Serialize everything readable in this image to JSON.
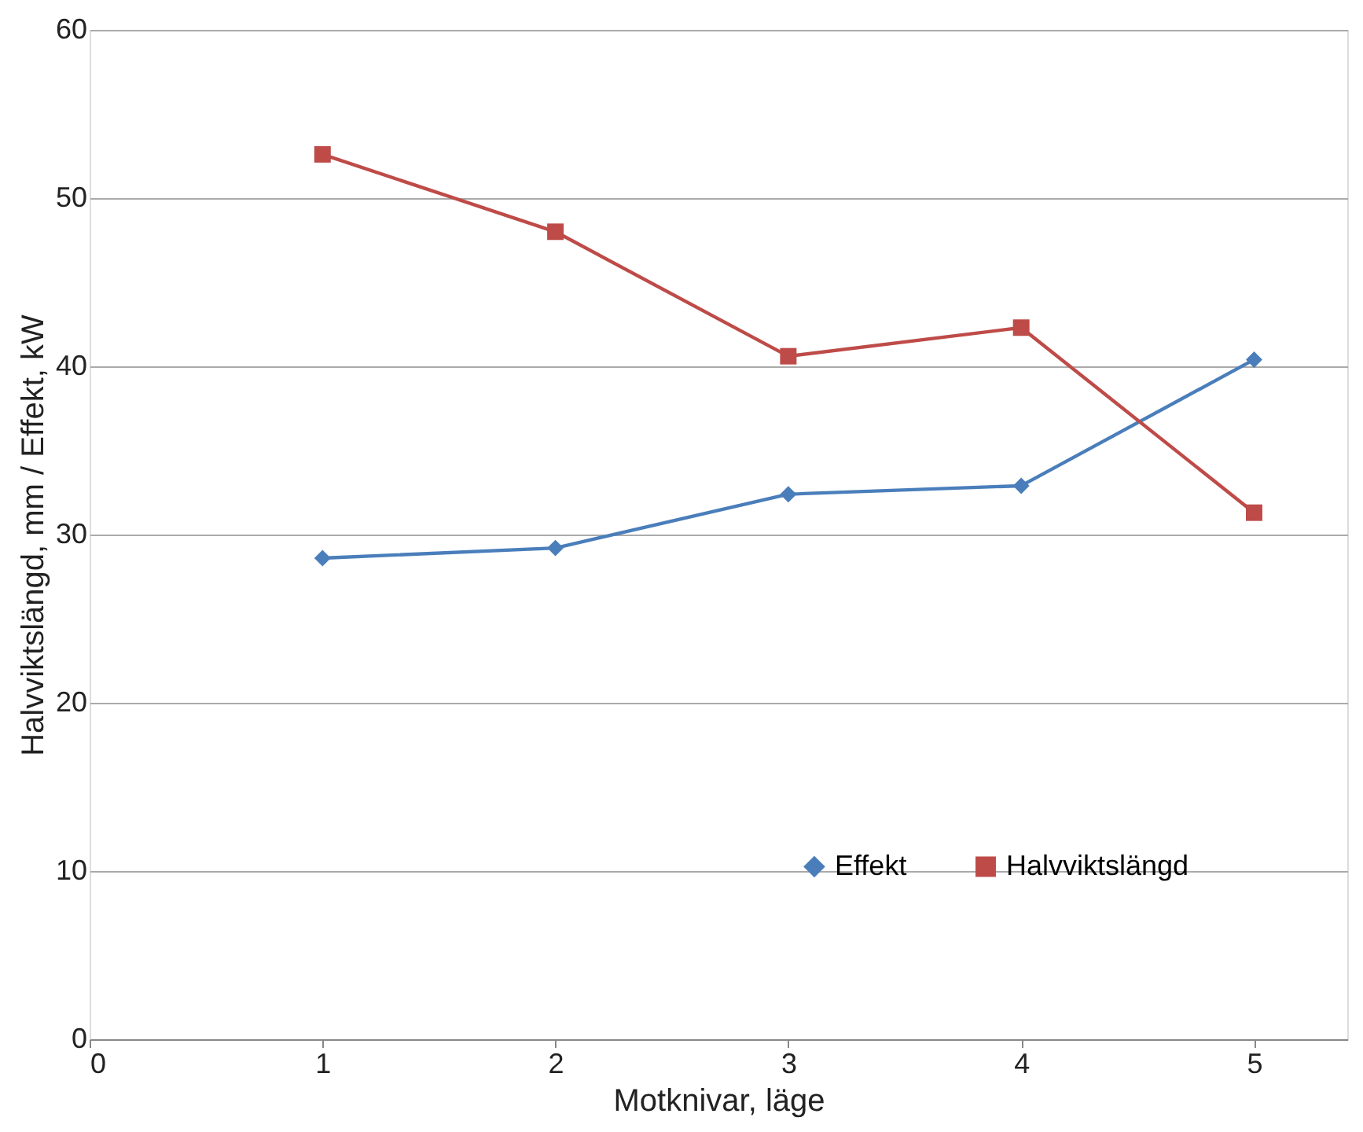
{
  "chart_data": {
    "type": "line",
    "xlabel": "Motknivar, läge",
    "ylabel": "Halvviktslängd, mm / Effekt, kW",
    "x": [
      1,
      2,
      3,
      4,
      5
    ],
    "series": [
      {
        "name": "Effekt",
        "color": "#4a7ebb",
        "marker": "diamond",
        "values": [
          28.6,
          29.2,
          32.4,
          32.9,
          40.4
        ]
      },
      {
        "name": "Halvviktslängd",
        "color": "#be4b48",
        "marker": "square",
        "values": [
          52.6,
          48.0,
          40.6,
          42.3,
          31.3
        ]
      }
    ],
    "xlim": [
      0,
      5.4
    ],
    "xticks": [
      0,
      1,
      2,
      3,
      4,
      5
    ],
    "ylim": [
      0,
      60
    ],
    "yticks": [
      0,
      10,
      20,
      30,
      40,
      50,
      60
    ],
    "grid": "y",
    "legend": "bottom right",
    "line_style": "solid"
  }
}
